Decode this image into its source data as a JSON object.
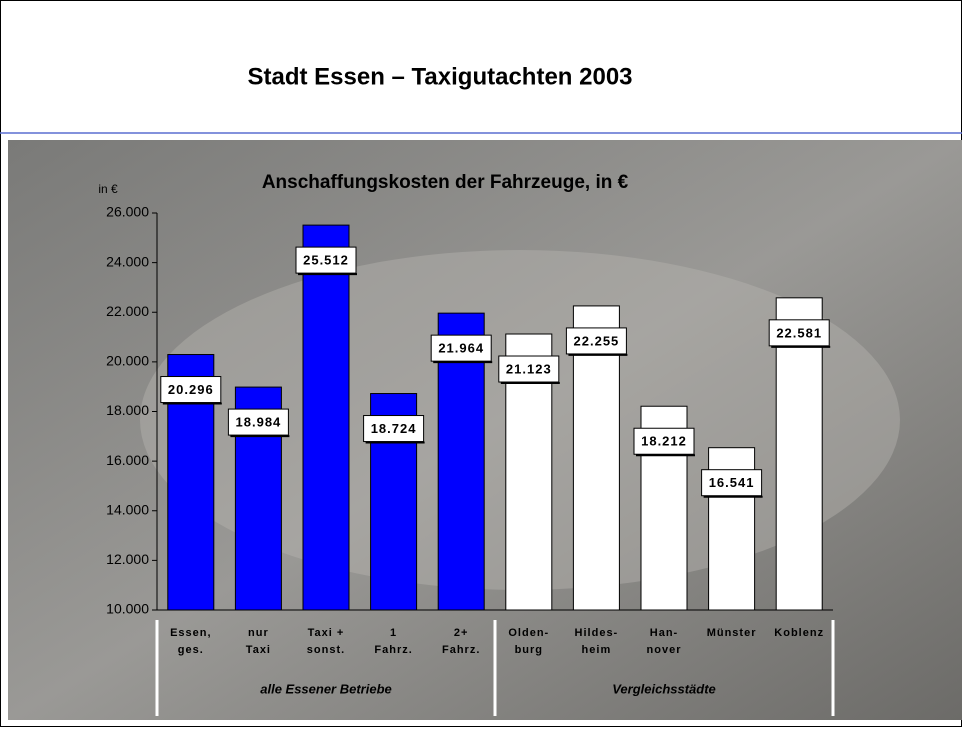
{
  "header": {
    "title": "Stadt Essen – Taxigutachten 2003"
  },
  "chart_data": {
    "type": "bar",
    "title": "Anschaffungskosten der Fahrzeuge, in €",
    "y_label": "in €",
    "ylim": [
      10000,
      26000
    ],
    "yticks": [
      {
        "value": 10000,
        "label": "10.000"
      },
      {
        "value": 12000,
        "label": "12.000"
      },
      {
        "value": 14000,
        "label": "14.000"
      },
      {
        "value": 16000,
        "label": "16.000"
      },
      {
        "value": 18000,
        "label": "18.000"
      },
      {
        "value": 20000,
        "label": "20.000"
      },
      {
        "value": 22000,
        "label": "22.000"
      },
      {
        "value": 24000,
        "label": "24.000"
      },
      {
        "value": 26000,
        "label": "26.000"
      }
    ],
    "groups": [
      {
        "label": "alle Essener Betriebe",
        "color": "#0000ff",
        "categories": [
          "Essen,\nges.",
          "nur\nTaxi",
          "Taxi +\nsonst.",
          "1\nFahrz.",
          "2+\nFahrz."
        ],
        "values": [
          20296,
          18984,
          25512,
          18724,
          21964
        ],
        "value_labels": [
          "20.296",
          "18.984",
          "25.512",
          "18.724",
          "21.964"
        ]
      },
      {
        "label": "Vergleichsstädte",
        "color": "#ffffff",
        "categories": [
          "Olden-\nburg",
          "Hildes-\nheim",
          "Han-\nnover",
          "Münster",
          "Koblenz"
        ],
        "values": [
          21123,
          22255,
          18212,
          16541,
          22581
        ],
        "value_labels": [
          "21.123",
          "22.255",
          "18.212",
          "16.541",
          "22.581"
        ]
      }
    ]
  }
}
